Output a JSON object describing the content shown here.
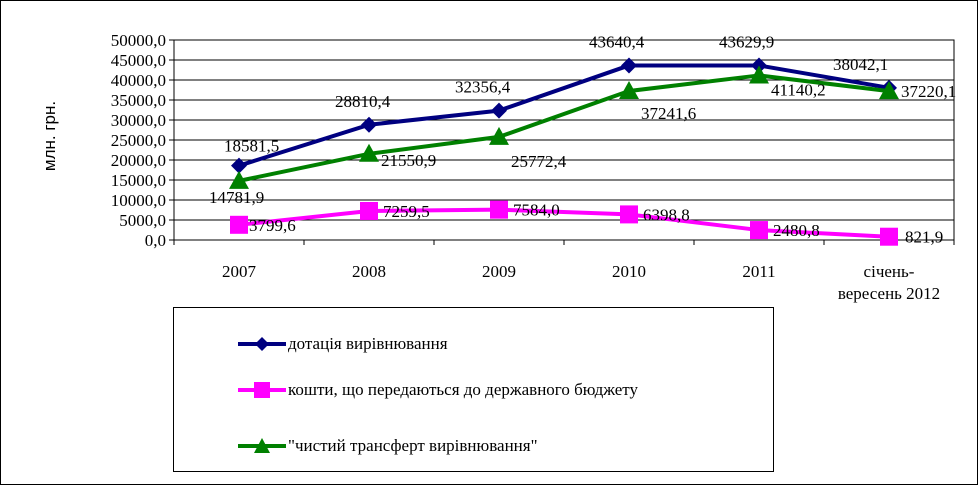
{
  "chart_data": {
    "type": "line",
    "categories": [
      "2007",
      "2008",
      "2009",
      "2010",
      "2011",
      "січень-\nвересень 2012"
    ],
    "ylabel": "млн. грн.",
    "ylim": [
      0,
      50000
    ],
    "yticks": [
      "0,0",
      "5000,0",
      "10000,0",
      "15000,0",
      "20000,0",
      "25000,0",
      "30000,0",
      "35000,0",
      "40000,0",
      "45000,0",
      "50000,0"
    ],
    "grid": true,
    "legend_position": "bottom",
    "series": [
      {
        "name": "дотація вирівнювання",
        "color": "#000080",
        "marker": "diamond",
        "values": [
          18581.5,
          28810.4,
          32356.4,
          43640.4,
          43629.9,
          38042.1
        ],
        "labels": [
          "18581,5",
          "28810,4",
          "32356,4",
          "43640,4",
          "43629,9",
          "38042,1"
        ]
      },
      {
        "name": "кошти, що передаються до державного бюджету",
        "color": "#ff00ff",
        "marker": "square",
        "values": [
          3799.6,
          7259.5,
          7584.0,
          6398.8,
          2480.8,
          821.9
        ],
        "labels": [
          "3799,6",
          "7259,5",
          "7584,0",
          "6398,8",
          "2480,8",
          "821,9"
        ]
      },
      {
        "name": "\"чистий трансферт вирівнювання\"",
        "color": "#008000",
        "marker": "triangle",
        "values": [
          14781.9,
          21550.9,
          25772.4,
          37241.6,
          41140.2,
          37220.1
        ],
        "labels": [
          "14781,9",
          "21550,9",
          "25772,4",
          "37241,6",
          "41140,2",
          "37220,1"
        ]
      }
    ]
  }
}
